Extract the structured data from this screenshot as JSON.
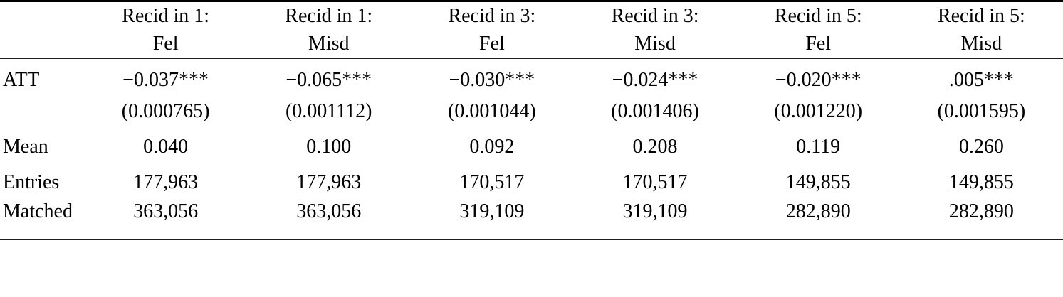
{
  "page": {
    "background": "#ffffff",
    "text_color": "#000000",
    "top_rule_color": "#000000",
    "thin_rule_color": "#1c1c1c"
  },
  "table": {
    "columns": [
      {
        "line1": "Recid in 1:",
        "line2": "Fel"
      },
      {
        "line1": "Recid in 1:",
        "line2": "Misd"
      },
      {
        "line1": "Recid in 3:",
        "line2": "Fel"
      },
      {
        "line1": "Recid in 3:",
        "line2": "Misd"
      },
      {
        "line1": "Recid in 5:",
        "line2": "Fel"
      },
      {
        "line1": "Recid in 5:",
        "line2": "Misd"
      }
    ],
    "rows": [
      {
        "label": "ATT",
        "values": [
          "−0.037***",
          "−0.065***",
          "−0.030***",
          "−0.024***",
          "−0.020***",
          ".005***"
        ]
      },
      {
        "label": "",
        "values": [
          "(0.000765)",
          "(0.001112)",
          "(0.001044)",
          "(0.001406)",
          "(0.001220)",
          "(0.001595)"
        ]
      },
      {
        "label": "Mean",
        "values": [
          "0.040",
          "0.100",
          "0.092",
          "0.208",
          "0.119",
          "0.260"
        ]
      },
      {
        "label": "Entries",
        "values": [
          "177,963",
          "177,963",
          "170,517",
          "170,517",
          "149,855",
          "149,855"
        ]
      },
      {
        "label": "Matched",
        "values": [
          "363,056",
          "363,056",
          "319,109",
          "319,109",
          "282,890",
          "282,890"
        ]
      }
    ]
  }
}
